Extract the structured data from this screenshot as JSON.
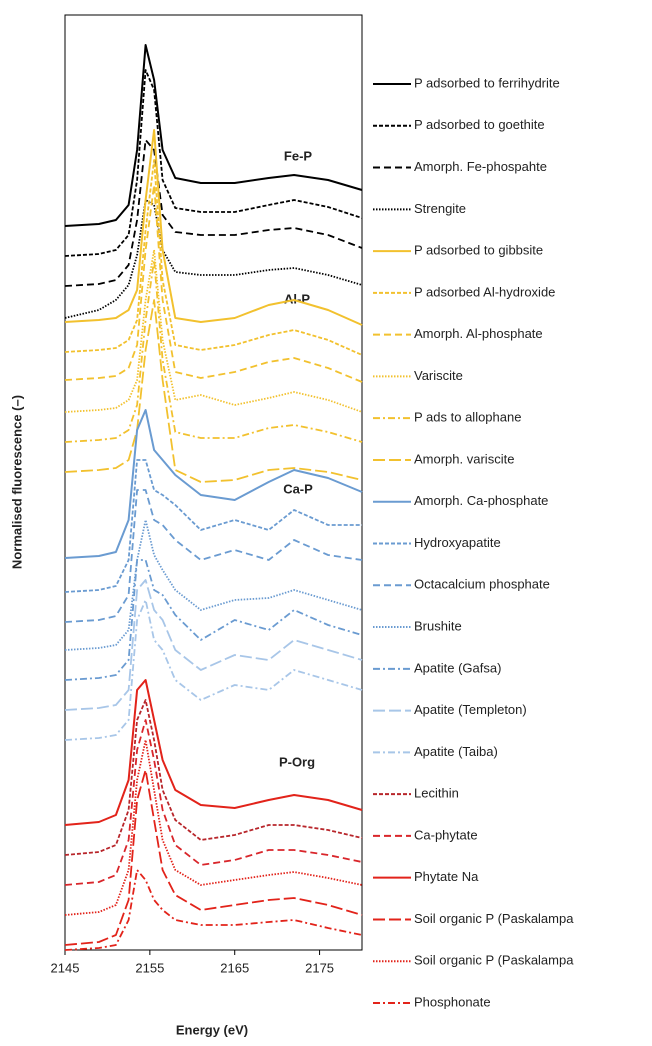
{
  "chart_data": {
    "type": "line",
    "x_label": "Energy (eV)",
    "y_label": "Normalised fluorescence (–)",
    "xlim": [
      2145,
      2180
    ],
    "xticks": [
      2145,
      2155,
      2165,
      2175
    ],
    "ylim": [
      0,
      93.5
    ],
    "annotations": [
      "Fe-P",
      "Al-P",
      "Ca-P",
      "P-Org"
    ],
    "x": [
      2145,
      2149,
      2151,
      2152.5,
      2153.5,
      2154.5,
      2155.5,
      2156.5,
      2158,
      2161,
      2165,
      2169,
      2172,
      2176,
      2180
    ],
    "series": [
      {
        "name": "P adsorbed to ferrihydrite",
        "color": "#000000",
        "style": "solid",
        "values": [
          72.4,
          72.6,
          73,
          74.5,
          80,
          90.5,
          87,
          80,
          77.2,
          76.7,
          76.7,
          77.2,
          77.5,
          77,
          76
        ]
      },
      {
        "name": "P adsorbed to goethite",
        "color": "#000000",
        "style": "dashed",
        "values": [
          69.4,
          69.6,
          70,
          71.5,
          77,
          88,
          86,
          77,
          74.2,
          73.8,
          73.8,
          74.5,
          75,
          74.3,
          73.2
        ]
      },
      {
        "name": "Amorph. Fe-phospahte",
        "color": "#000000",
        "style": "longdash",
        "values": [
          66.4,
          66.6,
          67,
          68.5,
          73,
          81,
          80,
          73.5,
          71.8,
          71.5,
          71.5,
          72,
          72.2,
          71.5,
          70.2
        ]
      },
      {
        "name": "Strengite",
        "color": "#000000",
        "style": "dotted",
        "values": [
          63.2,
          64,
          65,
          66.5,
          69.5,
          75,
          74.5,
          70,
          67.8,
          67.5,
          67.5,
          68,
          68.2,
          67.5,
          66.5
        ]
      },
      {
        "name": "P adsorbed to gibbsite",
        "color": "#f2c12e",
        "style": "solid",
        "values": [
          62.8,
          63,
          63.2,
          64,
          66,
          75,
          82,
          70,
          63.2,
          62.8,
          63.2,
          64.5,
          65,
          64,
          62.5
        ]
      },
      {
        "name": "P adsorbed Al-hydroxide",
        "color": "#f2c12e",
        "style": "dashed",
        "values": [
          59.8,
          60,
          60.2,
          61,
          63,
          72,
          79,
          67,
          60.5,
          60,
          60.5,
          61.5,
          62,
          61,
          59.5
        ]
      },
      {
        "name": "Amorph.  Al-phosphate",
        "color": "#f2c12e",
        "style": "longdash",
        "values": [
          57,
          57.2,
          57.4,
          58.2,
          60.5,
          70,
          76.5,
          65,
          57.8,
          57.2,
          57.8,
          58.8,
          59.2,
          58.2,
          56.8
        ]
      },
      {
        "name": "Variscite",
        "color": "#f2c12e",
        "style": "dotted",
        "values": [
          53.8,
          54,
          54.2,
          55,
          57,
          65,
          70,
          61,
          55,
          55.5,
          54.5,
          55.2,
          55.8,
          55,
          53.8
        ]
      },
      {
        "name": "P ads to allophane",
        "color": "#f2c12e",
        "style": "dashdot",
        "values": [
          50.8,
          51,
          51.2,
          52,
          54.5,
          63,
          69,
          59,
          51.8,
          51.2,
          51.2,
          52.2,
          52.5,
          51.8,
          50.8
        ]
      },
      {
        "name": "Amorph. variscite",
        "color": "#f2c12e",
        "style": "xlongdash",
        "values": [
          47.8,
          48,
          48.2,
          49,
          52,
          60,
          65,
          57,
          48,
          46.8,
          47,
          48,
          48.2,
          47.8,
          47
        ]
      },
      {
        "name": "Amorph. Ca-phosphate",
        "color": "#6a9bd1",
        "style": "solid",
        "values": [
          39.2,
          39.4,
          39.8,
          43,
          52,
          54,
          50,
          49,
          47.5,
          45.5,
          45,
          46.8,
          48,
          47.2,
          45.8
        ]
      },
      {
        "name": "Hydroxyapatite",
        "color": "#6a9bd1",
        "style": "dashed",
        "values": [
          35.8,
          36,
          36.4,
          39,
          49,
          49,
          46,
          45.5,
          44.5,
          42,
          43,
          42,
          44,
          42.5,
          42.5
        ]
      },
      {
        "name": "Octacalcium phosphate",
        "color": "#6a9bd1",
        "style": "longdash",
        "values": [
          32.8,
          33,
          33.4,
          35.5,
          46,
          46,
          43,
          42.5,
          41,
          39,
          40,
          39,
          41,
          39.5,
          39
        ]
      },
      {
        "name": "Brushite",
        "color": "#6a9bd1",
        "style": "dotted",
        "values": [
          30,
          30.2,
          30.5,
          32,
          39,
          43,
          39.5,
          38,
          36,
          34,
          35,
          35.2,
          36,
          35,
          34
        ]
      },
      {
        "name": "Apatite (Gafsa)",
        "color": "#6a9bd1",
        "style": "dashdot",
        "values": [
          27,
          27.2,
          27.5,
          29,
          39,
          39,
          36,
          35.5,
          33.5,
          31,
          33,
          32,
          34,
          32.5,
          31.5
        ]
      },
      {
        "name": "Apatite (Templeton)",
        "color": "#a8c6e8",
        "style": "xlongdash",
        "values": [
          24,
          24.2,
          24.5,
          26,
          36,
          37,
          34,
          33,
          30,
          28,
          29.5,
          29,
          31,
          30,
          29
        ]
      },
      {
        "name": "Apatite (Taiba)",
        "color": "#a8c6e8",
        "style": "dashdot",
        "values": [
          21,
          21.2,
          21.5,
          23,
          33,
          35,
          31,
          30,
          27,
          25,
          26.5,
          26,
          28,
          27,
          26
        ]
      },
      {
        "name": "Lecithin",
        "color": "#b8262b",
        "style": "dashed",
        "values": [
          9.5,
          9.8,
          10.5,
          14,
          23,
          25,
          21,
          16,
          13,
          11,
          11.5,
          12.5,
          12.5,
          12,
          11.2
        ]
      },
      {
        "name": "Ca-phytate",
        "color": "#d9262b",
        "style": "longdash",
        "values": [
          6.5,
          6.8,
          7.5,
          11,
          20,
          23,
          19,
          14,
          10.5,
          8.5,
          9,
          10,
          10,
          9.5,
          8.8
        ]
      },
      {
        "name": "Phytate Na",
        "color": "#e2231a",
        "style": "solid",
        "values": [
          12.5,
          12.8,
          13.5,
          17,
          26,
          27,
          23,
          19,
          16,
          14.5,
          14.2,
          15,
          15.5,
          15,
          14
        ]
      },
      {
        "name": "Soil organic P (Paskalampa",
        "color": "#e2231a",
        "style": "xlongdash",
        "values": [
          0.5,
          0.8,
          1.5,
          5,
          15,
          18,
          13,
          8,
          5.5,
          4,
          4.5,
          5,
          5.2,
          4.5,
          3.5
        ]
      },
      {
        "name": "Soil organic P (Paskalampa",
        "color": "#e2231a",
        "style": "dotted",
        "values": [
          3.5,
          3.8,
          4.5,
          8,
          17,
          21,
          16,
          11,
          8,
          6.5,
          7,
          7.5,
          7.8,
          7.2,
          6.5
        ]
      },
      {
        "name": "Phosphonate",
        "color": "#e2231a",
        "style": "dashdot",
        "values": [
          0,
          0.2,
          0.5,
          3,
          8,
          7,
          5,
          4,
          3,
          2.5,
          2.5,
          2.8,
          3,
          2.2,
          1.5
        ]
      }
    ]
  }
}
